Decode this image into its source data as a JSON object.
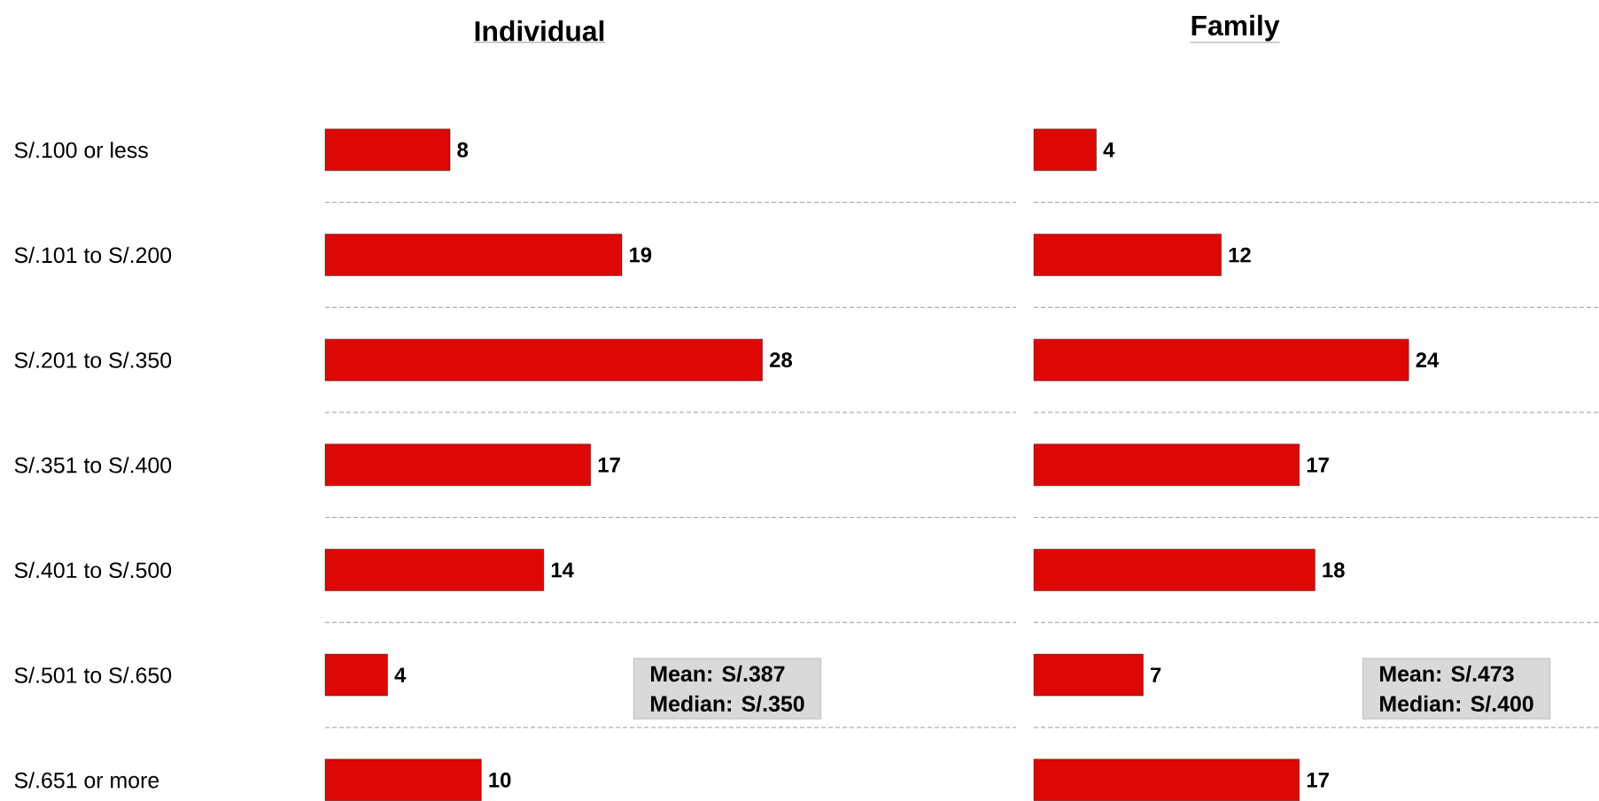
{
  "chart_data": [
    {
      "type": "bar",
      "orientation": "horizontal",
      "title": "Individual",
      "categories": [
        "S/.100 or less",
        "S/.101 to S/.200",
        "S/.201 to S/.350",
        "S/.351 to S/.400",
        "S/.401 to S/.500",
        "S/.501 to S/.650",
        "S/.651 or more"
      ],
      "values": [
        8,
        19,
        28,
        17,
        14,
        4,
        10
      ],
      "color": "#dd0806",
      "data_labels": true,
      "grid": "y",
      "line_style": "dashed",
      "tick_labels": "y",
      "annotations": [
        "Mean: S/.387",
        "Median: S/.350"
      ]
    },
    {
      "type": "bar",
      "orientation": "horizontal",
      "title": "Family",
      "categories": [
        null,
        null,
        null,
        null,
        null,
        null,
        null
      ],
      "values": [
        4,
        12,
        24,
        17,
        18,
        7,
        17
      ],
      "color": "#dd0806",
      "data_labels": true,
      "grid": "y",
      "line_style": "dashed",
      "tick_labels": false,
      "annotations": [
        "Mean: S/.473",
        "Median: S/.400"
      ]
    }
  ]
}
